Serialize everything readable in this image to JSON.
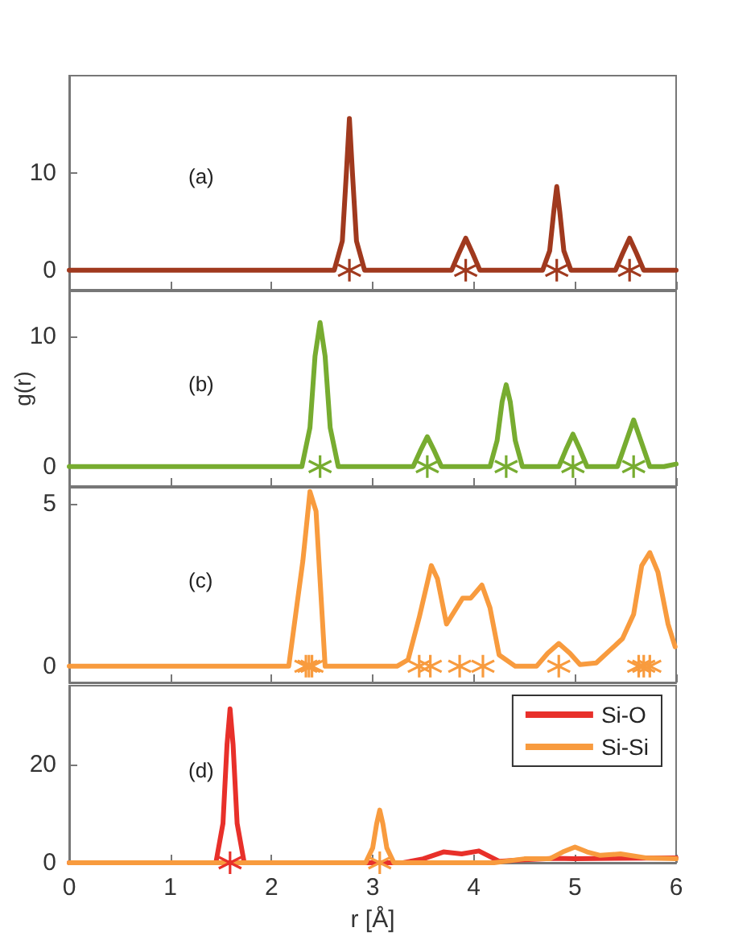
{
  "chart_data": [
    {
      "type": "line",
      "annotations": [
        "(a)"
      ],
      "xlim": [
        0,
        6
      ],
      "xticks": [
        0,
        1,
        2,
        3,
        4,
        5,
        6
      ],
      "ylim": [
        -2,
        20
      ],
      "yticks": [
        0,
        10
      ],
      "tick_labels": "y",
      "grid": false,
      "legend": false,
      "line_style": "solid",
      "series": [
        {
          "marker": "none",
          "color": "#a0391e",
          "x": [
            0,
            2.62,
            2.7,
            2.74,
            2.77,
            2.8,
            2.84,
            2.92,
            3.78,
            3.85,
            3.92,
            3.99,
            4.06,
            4.68,
            4.75,
            4.79,
            4.82,
            4.85,
            4.89,
            4.96,
            5.4,
            5.47,
            5.54,
            5.61,
            5.68,
            6
          ],
          "values": [
            0,
            0,
            3,
            10,
            15.6,
            10,
            3,
            0,
            0,
            1.7,
            3.3,
            1.7,
            0,
            0,
            2,
            6,
            8.6,
            6,
            2,
            0,
            0,
            1.7,
            3.3,
            1.7,
            0,
            0
          ]
        },
        {
          "type": "scatter",
          "marker": "cross",
          "color": "#a0391e",
          "x": [
            2.77,
            3.92,
            4.82,
            5.54
          ],
          "values": [
            0,
            0,
            0,
            0
          ]
        }
      ]
    },
    {
      "type": "line",
      "ylabel": "g(r)",
      "annotations": [
        "(b)"
      ],
      "xlim": [
        0,
        6
      ],
      "xticks": [
        0,
        1,
        2,
        3,
        4,
        5,
        6
      ],
      "ylim": [
        -1.5,
        13.5
      ],
      "yticks": [
        0,
        10
      ],
      "tick_labels": "y",
      "grid": false,
      "legend": false,
      "line_style": "solid",
      "series": [
        {
          "marker": "none",
          "color": "#77ac30",
          "x": [
            0,
            2.3,
            2.38,
            2.43,
            2.48,
            2.53,
            2.58,
            2.66,
            3.4,
            3.47,
            3.54,
            3.61,
            3.68,
            4.16,
            4.23,
            4.28,
            4.32,
            4.36,
            4.41,
            4.48,
            4.84,
            4.91,
            4.98,
            5.05,
            5.12,
            5.42,
            5.5,
            5.58,
            5.66,
            5.74,
            5.88,
            6
          ],
          "values": [
            0,
            0,
            3,
            8.5,
            11.1,
            8.5,
            3,
            0,
            0,
            1.2,
            2.3,
            1.2,
            0,
            0,
            2,
            5,
            6.3,
            5,
            2,
            0,
            0,
            1.3,
            2.5,
            1.3,
            0,
            0,
            1.8,
            3.6,
            1.8,
            0,
            0,
            0.2
          ]
        },
        {
          "type": "scatter",
          "marker": "cross",
          "color": "#77ac30",
          "x": [
            2.48,
            3.54,
            4.32,
            4.98,
            5.58
          ],
          "values": [
            0,
            0,
            0,
            0,
            0
          ]
        }
      ]
    },
    {
      "type": "line",
      "annotations": [
        "(c)"
      ],
      "xlim": [
        0,
        6
      ],
      "xticks": [
        0,
        1,
        2,
        3,
        4,
        5,
        6
      ],
      "ylim": [
        -0.5,
        5.5
      ],
      "yticks": [
        0,
        5
      ],
      "tick_labels": "y",
      "grid": false,
      "legend": false,
      "line_style": "solid",
      "series": [
        {
          "marker": "none",
          "color": "#f89b3e",
          "x": [
            0,
            2.17,
            2.31,
            2.38,
            2.44,
            2.53,
            3.24,
            3.35,
            3.46,
            3.58,
            3.64,
            3.73,
            3.89,
            3.97,
            4.08,
            4.16,
            4.25,
            4.41,
            4.62,
            4.73,
            4.84,
            4.95,
            5.05,
            5.21,
            5.47,
            5.58,
            5.66,
            5.74,
            5.82,
            5.92,
            5.99
          ],
          "values": [
            0,
            0,
            3.25,
            5.38,
            4.78,
            0,
            0,
            0.2,
            1.5,
            3.1,
            2.7,
            1.3,
            2.1,
            2.1,
            2.5,
            1.8,
            0.35,
            0,
            0,
            0.4,
            0.7,
            0.4,
            0.05,
            0.1,
            0.85,
            1.6,
            3.1,
            3.5,
            2.9,
            1.3,
            0.6
          ]
        },
        {
          "type": "scatter",
          "marker": "cross",
          "color": "#f89b3e",
          "x": [
            2.34,
            2.37,
            2.4,
            3.46,
            3.57,
            3.86,
            4.09,
            4.84,
            5.63,
            5.68,
            5.74
          ],
          "values": [
            0,
            0,
            0,
            0,
            0,
            0,
            0,
            0,
            0,
            0,
            0
          ]
        }
      ]
    },
    {
      "type": "line",
      "xlabel": "r [Å]",
      "annotations": [
        "(d)"
      ],
      "xlim": [
        0,
        6
      ],
      "xticks": [
        0,
        1,
        2,
        3,
        4,
        5,
        6
      ],
      "ylim": [
        0,
        36
      ],
      "yticks": [
        0,
        20
      ],
      "grid": false,
      "legend": "top right",
      "line_style": "solid",
      "series": [
        {
          "name": "Si-O",
          "marker": "none",
          "color": "#e8302a",
          "x": [
            0,
            1.45,
            1.52,
            1.56,
            1.59,
            1.62,
            1.66,
            1.73,
            3.3,
            3.5,
            3.7,
            3.88,
            4.05,
            4.25,
            4.5,
            4.8,
            5.0,
            5.4,
            6
          ],
          "values": [
            0,
            0,
            8,
            24,
            31.3,
            24,
            8,
            0,
            0,
            0.8,
            2.2,
            1.8,
            2.4,
            0.3,
            0.6,
            0.9,
            0.8,
            0.9,
            1.0
          ]
        },
        {
          "name": "Si-Si",
          "marker": "none",
          "color": "#f89b3e",
          "x": [
            0,
            2.93,
            3.0,
            3.04,
            3.07,
            3.1,
            3.14,
            3.21,
            4.2,
            4.5,
            4.75,
            4.88,
            5.0,
            5.12,
            5.25,
            5.45,
            5.7,
            6
          ],
          "values": [
            0,
            0,
            3,
            8,
            10.7,
            8,
            3,
            0,
            0,
            0.8,
            0.8,
            2.2,
            3.2,
            2.2,
            1.5,
            1.8,
            1.0,
            0.8
          ]
        },
        {
          "type": "scatter",
          "marker": "cross",
          "color": "#e8302a",
          "x": [
            1.59
          ],
          "values": [
            0
          ]
        },
        {
          "type": "scatter",
          "marker": "cross",
          "color": "#f89b3e",
          "x": [
            3.07
          ],
          "values": [
            0
          ]
        }
      ]
    }
  ]
}
